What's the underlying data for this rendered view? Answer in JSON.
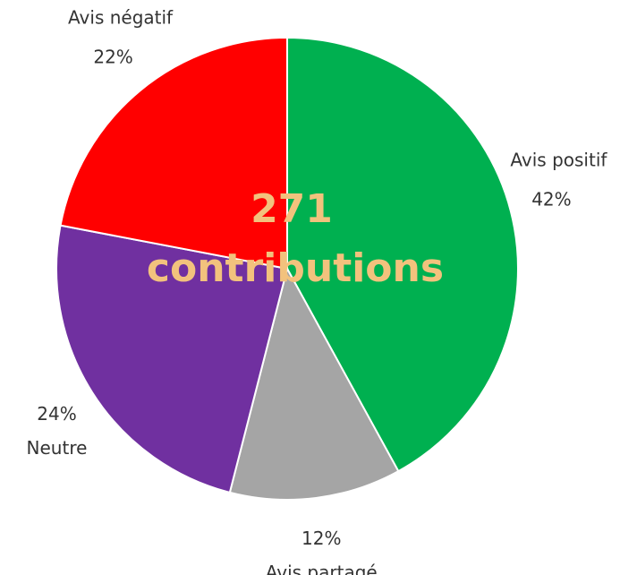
{
  "chart_data": {
    "type": "pie",
    "categories": [
      "Avis positif",
      "Avis partagé",
      "Neutre",
      "Avis négatif"
    ],
    "values": [
      42,
      12,
      24,
      22
    ],
    "value_labels": [
      "42%",
      "12%",
      "24%",
      "22%"
    ],
    "colors": [
      "#00b050",
      "#a5a5a5",
      "#7030a0",
      "#ff0000"
    ],
    "center_label": [
      "271",
      "contributions"
    ]
  }
}
